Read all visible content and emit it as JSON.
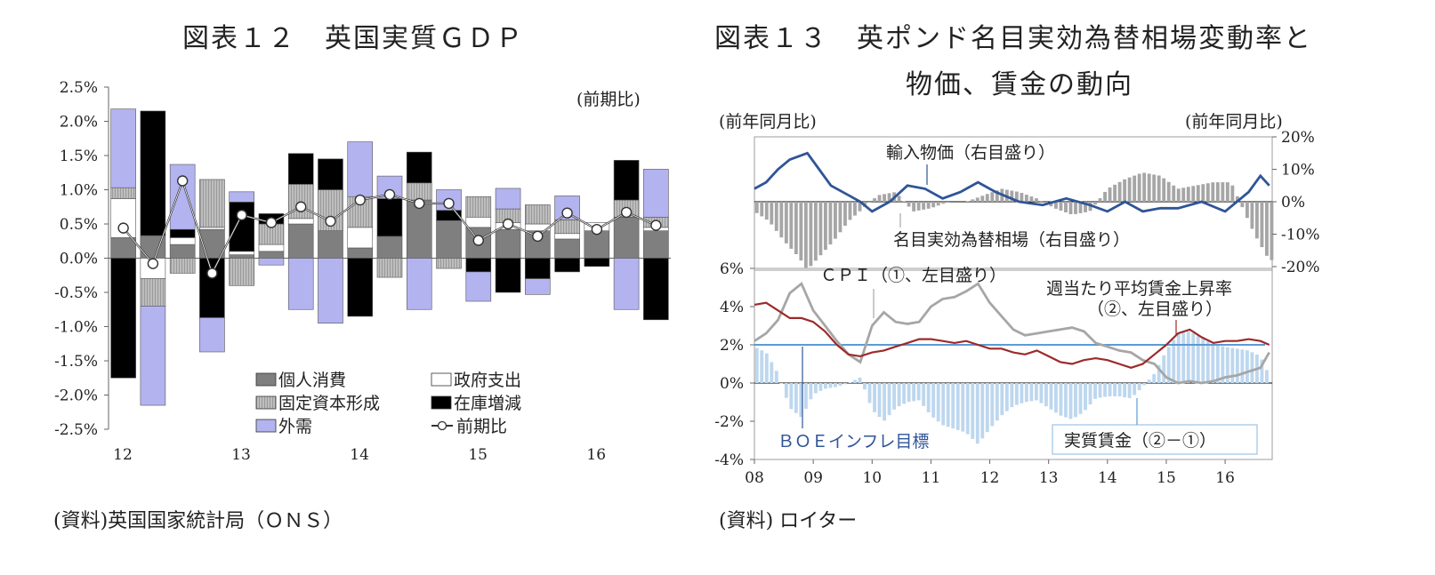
{
  "left": {
    "title": "図表１２　英国実質ＧＤＰ",
    "source": "(資料)英国国家統計局（ＯＮＳ）"
  },
  "right": {
    "title_line1": "図表１３　英ポンド名目実効為替相場変動率と",
    "title_line2": "物価、賃金の動向",
    "source": "(資料) ロイター"
  },
  "chart_data": [
    {
      "type": "bar",
      "stacked": true,
      "title": "図表１２　英国実質ＧＤＰ",
      "unit_note": "(前期比)",
      "xlabel": "",
      "ylabel": "",
      "ylim": [
        -2.5,
        2.5
      ],
      "yticks": [
        "2.5%",
        "2.0%",
        "1.5%",
        "1.0%",
        "0.5%",
        "0.0%",
        "-0.5%",
        "-1.0%",
        "-1.5%",
        "-2.0%",
        "-2.5%"
      ],
      "year_labels": [
        "12",
        "13",
        "14",
        "15",
        "16"
      ],
      "legend": [
        "個人消費",
        "政府支出",
        "固定資本形成",
        "在庫増減",
        "外需",
        "前期比"
      ],
      "colors": {
        "個人消費": "#7f7f7f",
        "政府支出": "#ffffff",
        "固定資本形成": "#c8c8c8",
        "在庫増減": "#000000",
        "外需": "#b3b3f0"
      },
      "categories": [
        "12Q1",
        "12Q2",
        "12Q3",
        "12Q4",
        "13Q1",
        "13Q2",
        "13Q3",
        "13Q4",
        "14Q1",
        "14Q2",
        "14Q3",
        "14Q4",
        "15Q1",
        "15Q2",
        "15Q3",
        "15Q4",
        "16Q1",
        "16Q2",
        "16Q3"
      ],
      "series": [
        {
          "name": "個人消費",
          "values": [
            0.3,
            0.33,
            0.2,
            0.42,
            0.05,
            0.1,
            0.5,
            0.4,
            0.15,
            0.32,
            0.85,
            0.55,
            0.45,
            0.42,
            0.4,
            0.28,
            0.4,
            0.6,
            0.4
          ]
        },
        {
          "name": "政府支出",
          "values": [
            0.57,
            -0.3,
            0.1,
            0.03,
            0.05,
            0.1,
            0.08,
            0.0,
            0.3,
            0.0,
            0.0,
            0.0,
            0.15,
            0.1,
            0.1,
            0.08,
            0.12,
            0.0,
            0.05
          ]
        },
        {
          "name": "固定資本形成",
          "values": [
            0.16,
            -0.4,
            -0.22,
            0.7,
            -0.4,
            0.3,
            0.5,
            0.6,
            0.45,
            -0.28,
            0.25,
            -0.15,
            0.3,
            0.2,
            0.28,
            0.2,
            0.0,
            0.25,
            0.15
          ]
        },
        {
          "name": "在庫増減",
          "values": [
            -1.75,
            1.82,
            0.12,
            -0.87,
            0.72,
            0.15,
            0.45,
            0.45,
            -0.85,
            0.55,
            0.45,
            0.15,
            -0.2,
            -0.5,
            -0.3,
            -0.2,
            -0.12,
            0.58,
            -0.9
          ]
        },
        {
          "name": "外需",
          "values": [
            1.15,
            -1.45,
            0.95,
            -0.5,
            0.15,
            -0.1,
            -0.75,
            -0.95,
            0.8,
            0.33,
            -0.75,
            0.3,
            -0.43,
            0.3,
            -0.23,
            0.35,
            0.0,
            -0.75,
            0.7
          ]
        }
      ],
      "line": {
        "name": "前期比",
        "values": [
          0.44,
          -0.08,
          1.13,
          -0.22,
          0.63,
          0.52,
          0.75,
          0.54,
          0.85,
          0.93,
          0.8,
          0.8,
          0.26,
          0.5,
          0.32,
          0.66,
          0.42,
          0.67,
          0.48
        ]
      }
    },
    {
      "type": "line",
      "title": "図表１３　英ポンド名目実効為替相場変動率と物価、賃金の動向",
      "upper": {
        "left_unit": "(前年同月比)",
        "right_unit": "(前年同月比)",
        "right_ylim": [
          -20,
          20
        ],
        "right_ticks": [
          "20%",
          "10%",
          "0%",
          "-10%",
          "-20%"
        ],
        "labels": {
          "import": "輸入物価（右目盛り）",
          "fx": "名目実効為替相場（右目盛り）"
        },
        "colors": {
          "import": "#2f5597",
          "fx": "#a6a6a6"
        },
        "x": [
          2008.0,
          2008.2,
          2008.4,
          2008.6,
          2008.9,
          2009.1,
          2009.3,
          2009.6,
          2009.8,
          2010.0,
          2010.3,
          2010.6,
          2010.9,
          2011.2,
          2011.5,
          2011.8,
          2012.1,
          2012.5,
          2012.9,
          2013.3,
          2013.7,
          2014.0,
          2014.3,
          2014.6,
          2014.9,
          2015.2,
          2015.6,
          2016.0,
          2016.2,
          2016.4,
          2016.6,
          2016.75
        ],
        "import_values": [
          4,
          6,
          10,
          13,
          15,
          10,
          5,
          2,
          0,
          -3,
          0,
          5,
          4,
          1,
          3,
          6,
          3,
          0,
          -1,
          1,
          -1,
          -3,
          0,
          -3,
          -2,
          -2,
          0,
          -3,
          0,
          3,
          8,
          5
        ],
        "fx_x": [
          2008.0,
          2008.25,
          2008.5,
          2008.75,
          2008.9,
          2009.1,
          2009.35,
          2009.6,
          2009.85,
          2010.1,
          2010.4,
          2010.7,
          2011.0,
          2011.3,
          2011.6,
          2011.9,
          2012.2,
          2012.5,
          2012.8,
          2013.1,
          2013.4,
          2013.7,
          2014.0,
          2014.3,
          2014.6,
          2014.9,
          2015.2,
          2015.5,
          2015.8,
          2016.1,
          2016.3,
          2016.5,
          2016.75
        ],
        "fx_values": [
          -3,
          -6,
          -12,
          -17,
          -21,
          -17,
          -12,
          -6,
          -2,
          2,
          3,
          -3,
          -2,
          0,
          0,
          2,
          4,
          3,
          1,
          -2,
          -4,
          -3,
          4,
          7,
          9,
          8,
          4,
          5,
          6,
          6,
          -2,
          -10,
          -18
        ]
      },
      "lower": {
        "ylim": [
          -4,
          6
        ],
        "left_ticks": [
          "6%",
          "4%",
          "2%",
          "0%",
          "-2%",
          "-4%"
        ],
        "year_labels": [
          "08",
          "09",
          "10",
          "11",
          "12",
          "13",
          "14",
          "15",
          "16"
        ],
        "labels": {
          "cpi": "ＣＰＩ（①、左目盛り）",
          "wage1": "週当たり平均賃金上昇率",
          "wage2": "（②、左目盛り）",
          "boe": "ＢＯＥインフレ目標",
          "real": "実質賃金（②－①）"
        },
        "colors": {
          "cpi": "#a6a6a6",
          "wage": "#9c2a2a",
          "boe": "#5b9bd5",
          "real": "#bdd7ee"
        },
        "boe_target": 2,
        "x": [
          2008.0,
          2008.2,
          2008.4,
          2008.6,
          2008.8,
          2009.0,
          2009.2,
          2009.4,
          2009.6,
          2009.8,
          2010.0,
          2010.2,
          2010.4,
          2010.6,
          2010.8,
          2011.0,
          2011.2,
          2011.4,
          2011.6,
          2011.8,
          2012.0,
          2012.2,
          2012.4,
          2012.6,
          2012.8,
          2013.0,
          2013.2,
          2013.4,
          2013.6,
          2013.8,
          2014.0,
          2014.2,
          2014.4,
          2014.6,
          2014.8,
          2015.0,
          2015.2,
          2015.4,
          2015.6,
          2015.8,
          2016.0,
          2016.2,
          2016.4,
          2016.6,
          2016.75
        ],
        "cpi_values": [
          2.2,
          2.6,
          3.3,
          4.7,
          5.2,
          3.8,
          3.0,
          2.2,
          1.5,
          1.1,
          3.0,
          3.7,
          3.2,
          3.1,
          3.2,
          4.0,
          4.4,
          4.5,
          4.8,
          5.2,
          4.2,
          3.5,
          2.8,
          2.5,
          2.6,
          2.7,
          2.8,
          2.9,
          2.7,
          2.1,
          1.9,
          1.7,
          1.6,
          1.2,
          1.0,
          0.3,
          0.0,
          0.1,
          0.0,
          0.1,
          0.3,
          0.4,
          0.6,
          0.8,
          1.6
        ],
        "wage_values": [
          4.1,
          4.2,
          3.8,
          3.4,
          3.4,
          3.2,
          2.7,
          2.0,
          1.5,
          1.4,
          1.6,
          1.7,
          1.9,
          2.1,
          2.3,
          2.3,
          2.2,
          2.1,
          2.2,
          2.0,
          1.8,
          1.8,
          1.6,
          1.5,
          1.7,
          1.4,
          1.1,
          1.0,
          1.2,
          1.3,
          1.2,
          1.0,
          0.8,
          1.0,
          1.5,
          2.0,
          2.6,
          2.8,
          2.4,
          2.1,
          2.2,
          2.2,
          2.3,
          2.2,
          2.0
        ]
      }
    }
  ]
}
